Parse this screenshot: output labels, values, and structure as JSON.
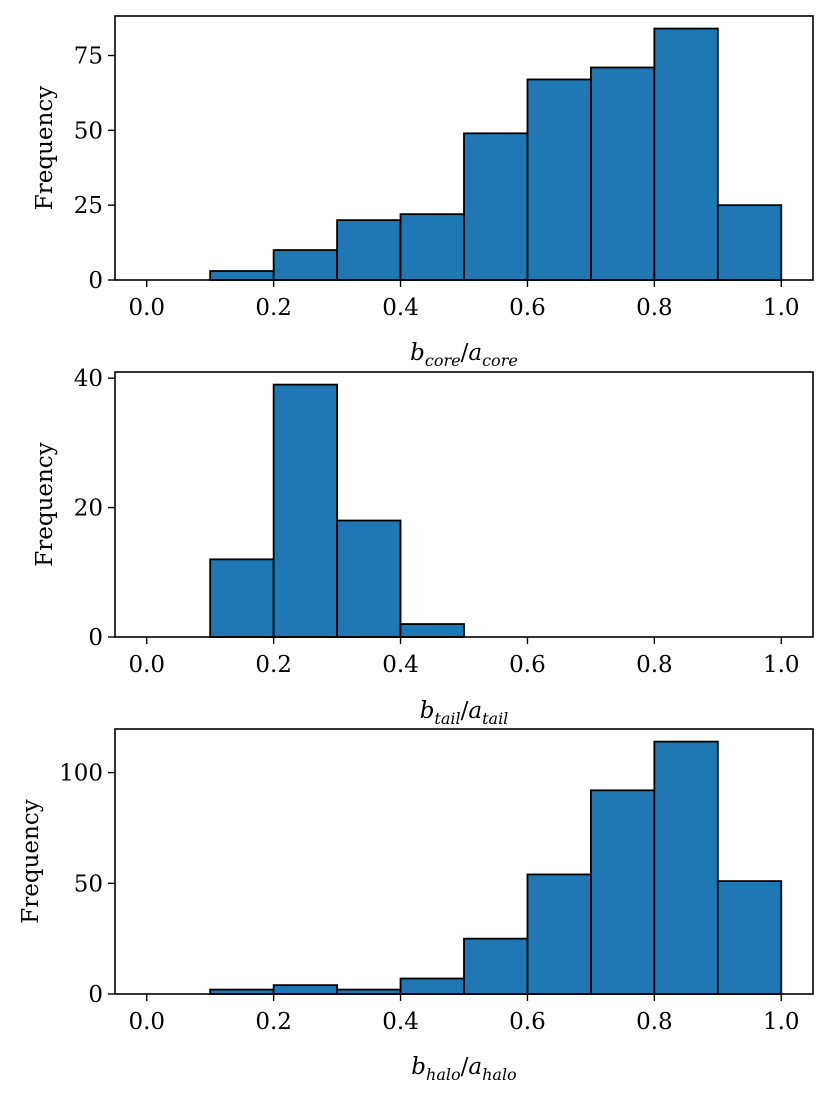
{
  "chart_data": [
    {
      "type": "bar",
      "ylabel": "Frequency",
      "xlabel": {
        "num": "b",
        "num_sub": "core",
        "sep": "/",
        "den": "a",
        "den_sub": "core"
      },
      "bin_edges": [
        0.0,
        0.1,
        0.2,
        0.3,
        0.4,
        0.5,
        0.6,
        0.7,
        0.8,
        0.9,
        1.0
      ],
      "values": [
        0,
        3,
        10,
        20,
        22,
        49,
        67,
        71,
        84,
        25
      ],
      "xlim": [
        -0.05,
        1.05
      ],
      "ylim": [
        0,
        88.2
      ],
      "xticks": [
        0.0,
        0.2,
        0.4,
        0.6,
        0.8,
        1.0
      ],
      "xtick_labels": [
        "0.0",
        "0.2",
        "0.4",
        "0.6",
        "0.8",
        "1.0"
      ],
      "yticks": [
        0,
        25,
        50,
        75
      ],
      "ytick_labels": [
        "0",
        "25",
        "50",
        "75"
      ],
      "bar_color": "#1f77b4",
      "edge_color": "#000000",
      "grid": false
    },
    {
      "type": "bar",
      "ylabel": "Frequency",
      "xlabel": {
        "num": "b",
        "num_sub": "tail",
        "sep": "/",
        "den": "a",
        "den_sub": "tail"
      },
      "bin_edges": [
        0.0,
        0.1,
        0.2,
        0.3,
        0.4,
        0.5,
        0.6,
        0.7,
        0.8,
        0.9,
        1.0
      ],
      "values": [
        0,
        12,
        39,
        18,
        2,
        0,
        0,
        0,
        0,
        0
      ],
      "xlim": [
        -0.05,
        1.05
      ],
      "ylim": [
        0,
        40.95
      ],
      "xticks": [
        0.0,
        0.2,
        0.4,
        0.6,
        0.8,
        1.0
      ],
      "xtick_labels": [
        "0.0",
        "0.2",
        "0.4",
        "0.6",
        "0.8",
        "1.0"
      ],
      "yticks": [
        0,
        20,
        40
      ],
      "ytick_labels": [
        "0",
        "20",
        "40"
      ],
      "bar_color": "#1f77b4",
      "edge_color": "#000000",
      "grid": false
    },
    {
      "type": "bar",
      "ylabel": "Frequency",
      "xlabel": {
        "num": "b",
        "num_sub": "halo",
        "sep": "/",
        "den": "a",
        "den_sub": "halo"
      },
      "bin_edges": [
        0.0,
        0.1,
        0.2,
        0.3,
        0.4,
        0.5,
        0.6,
        0.7,
        0.8,
        0.9,
        1.0
      ],
      "values": [
        0,
        2,
        4,
        2,
        7,
        25,
        54,
        92,
        114,
        51
      ],
      "xlim": [
        -0.05,
        1.05
      ],
      "ylim": [
        0,
        119.7
      ],
      "xticks": [
        0.0,
        0.2,
        0.4,
        0.6,
        0.8,
        1.0
      ],
      "xtick_labels": [
        "0.0",
        "0.2",
        "0.4",
        "0.6",
        "0.8",
        "1.0"
      ],
      "yticks": [
        0,
        50,
        100
      ],
      "ytick_labels": [
        "0",
        "50",
        "100"
      ],
      "bar_color": "#1f77b4",
      "edge_color": "#000000",
      "grid": false
    }
  ]
}
